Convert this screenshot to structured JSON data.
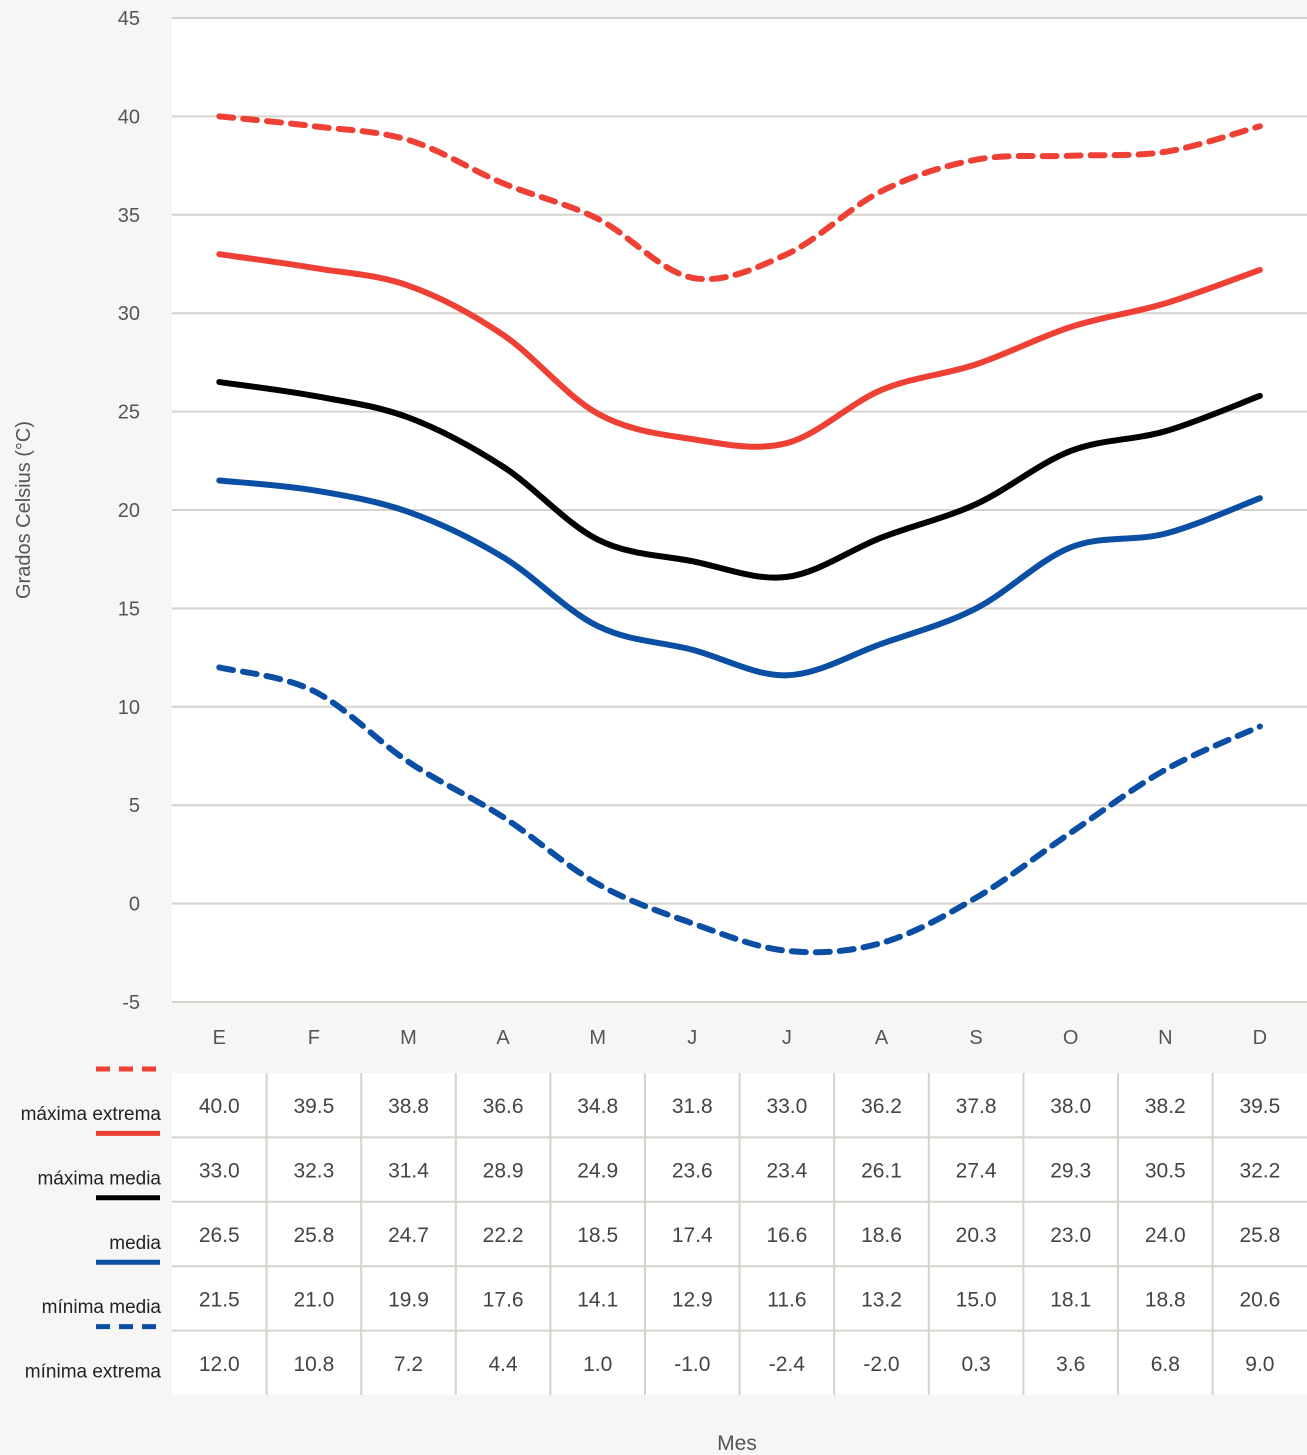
{
  "chart_data": {
    "type": "line",
    "title": "",
    "xlabel": "Mes",
    "ylabel": "Grados Celsius (°C)",
    "ylim": [
      -5,
      45
    ],
    "y_ticks": [
      -5,
      0,
      5,
      10,
      15,
      20,
      25,
      30,
      35,
      40,
      45
    ],
    "grid": true,
    "legend_placement": "table-left",
    "categories": [
      "E",
      "F",
      "M",
      "A",
      "M",
      "J",
      "J",
      "A",
      "S",
      "O",
      "N",
      "D"
    ],
    "series": [
      {
        "name": "máxima extrema",
        "color": "#ee4035",
        "style": "dashed",
        "values": [
          40.0,
          39.5,
          38.8,
          36.6,
          34.8,
          31.8,
          33.0,
          36.2,
          37.8,
          38.0,
          38.2,
          39.5
        ],
        "value_labels": [
          "40.0",
          "39.5",
          "38.8",
          "36.6",
          "34.8",
          "31.8",
          "33.0",
          "36.2",
          "37.8",
          "38.0",
          "38.2",
          "39.5"
        ]
      },
      {
        "name": "máxima media",
        "color": "#ee4035",
        "style": "solid",
        "values": [
          33.0,
          32.3,
          31.4,
          28.9,
          24.9,
          23.6,
          23.4,
          26.1,
          27.4,
          29.3,
          30.5,
          32.2
        ],
        "value_labels": [
          "33.0",
          "32.3",
          "31.4",
          "28.9",
          "24.9",
          "23.6",
          "23.4",
          "26.1",
          "27.4",
          "29.3",
          "30.5",
          "32.2"
        ]
      },
      {
        "name": "media",
        "color": "#000000",
        "style": "solid",
        "values": [
          26.5,
          25.8,
          24.7,
          22.2,
          18.5,
          17.4,
          16.6,
          18.6,
          20.3,
          23.0,
          24.0,
          25.8
        ],
        "value_labels": [
          "26.5",
          "25.8",
          "24.7",
          "22.2",
          "18.5",
          "17.4",
          "16.6",
          "18.6",
          "20.3",
          "23.0",
          "24.0",
          "25.8"
        ]
      },
      {
        "name": "mínima media",
        "color": "#0a4fa3",
        "style": "solid",
        "values": [
          21.5,
          21.0,
          19.9,
          17.6,
          14.1,
          12.9,
          11.6,
          13.2,
          15.0,
          18.1,
          18.8,
          20.6
        ],
        "value_labels": [
          "21.5",
          "21.0",
          "19.9",
          "17.6",
          "14.1",
          "12.9",
          "11.6",
          "13.2",
          "15.0",
          "18.1",
          "18.8",
          "20.6"
        ]
      },
      {
        "name": "mínima extrema",
        "color": "#0a4fa3",
        "style": "dashed",
        "values": [
          12.0,
          10.8,
          7.2,
          4.4,
          1.0,
          -1.0,
          -2.4,
          -2.0,
          0.3,
          3.6,
          6.8,
          9.0
        ],
        "value_labels": [
          "12.0",
          "10.8",
          "7.2",
          "4.4",
          "1.0",
          "-1.0",
          "-2.4",
          "-2.0",
          "0.3",
          "3.6",
          "6.8",
          "9.0"
        ]
      }
    ]
  }
}
